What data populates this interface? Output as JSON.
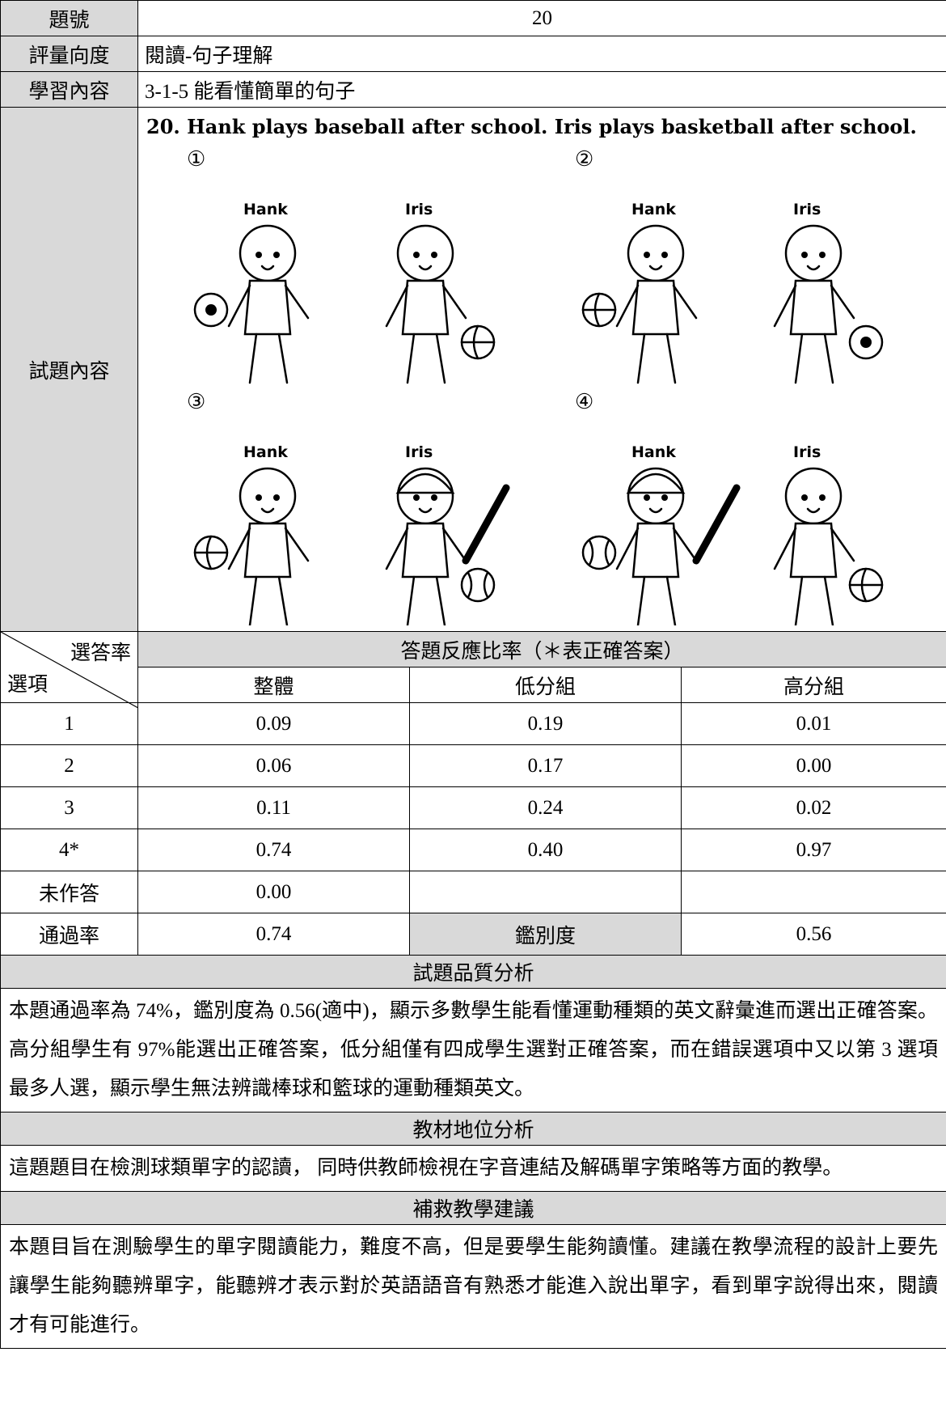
{
  "rows": [
    {
      "label": "題號",
      "value": "20"
    },
    {
      "label": "評量向度",
      "value": "閱讀-句子理解"
    },
    {
      "label": "學習內容",
      "value": "3-1-5 能看懂簡單的句子"
    }
  ],
  "item": {
    "label": "試題內容",
    "question": "20. Hank plays baseball after school. Iris plays basketball after school.",
    "options": [
      {
        "marker": "①",
        "names": [
          "Hank",
          "Iris"
        ]
      },
      {
        "marker": "②",
        "names": [
          "Hank",
          "Iris"
        ]
      },
      {
        "marker": "③",
        "names": [
          "Hank",
          "Iris"
        ]
      },
      {
        "marker": "④",
        "names": [
          "Hank",
          "Iris"
        ]
      }
    ]
  },
  "response": {
    "corner_top": "選答率",
    "corner_bottom": "選項",
    "title": "答題反應比率（＊表正確答案）",
    "columns": [
      "整體",
      "低分組",
      "高分組"
    ],
    "rows": [
      [
        "1",
        "0.09",
        "0.19",
        "0.01"
      ],
      [
        "2",
        "0.06",
        "0.17",
        "0.00"
      ],
      [
        "3",
        "0.11",
        "0.24",
        "0.02"
      ],
      [
        "4*",
        "0.74",
        "0.40",
        "0.97"
      ]
    ],
    "unanswered": [
      "未作答",
      "0.00"
    ],
    "pass": [
      "通過率",
      "0.74",
      "鑑別度",
      "0.56"
    ]
  },
  "sections": [
    {
      "title": "試題品質分析",
      "text": "本題通過率為 74%，鑑別度為 0.56(適中)，顯示多數學生能看懂運動種類的英文辭彙進而選出正確答案。高分組學生有 97%能選出正確答案，低分組僅有四成學生選對正確答案，而在錯誤選項中又以第 3 選項最多人選，顯示學生無法辨識棒球和籃球的運動種類英文。"
    },
    {
      "title": "教材地位分析",
      "text": "這題題目在檢測球類單字的認讀， 同時供教師檢視在字音連結及解碼單字策略等方面的教學。"
    },
    {
      "title": "補救教學建議",
      "text": "本題目旨在測驗學生的單字閱讀能力，難度不高，但是要學生能夠讀懂。建議在教學流程的設計上要先讓學生能夠聽辨單字，能聽辨才表示對於英語語音有熟悉才能進入說出單字，看到單字說得出來，閱讀才有可能進行。"
    }
  ]
}
